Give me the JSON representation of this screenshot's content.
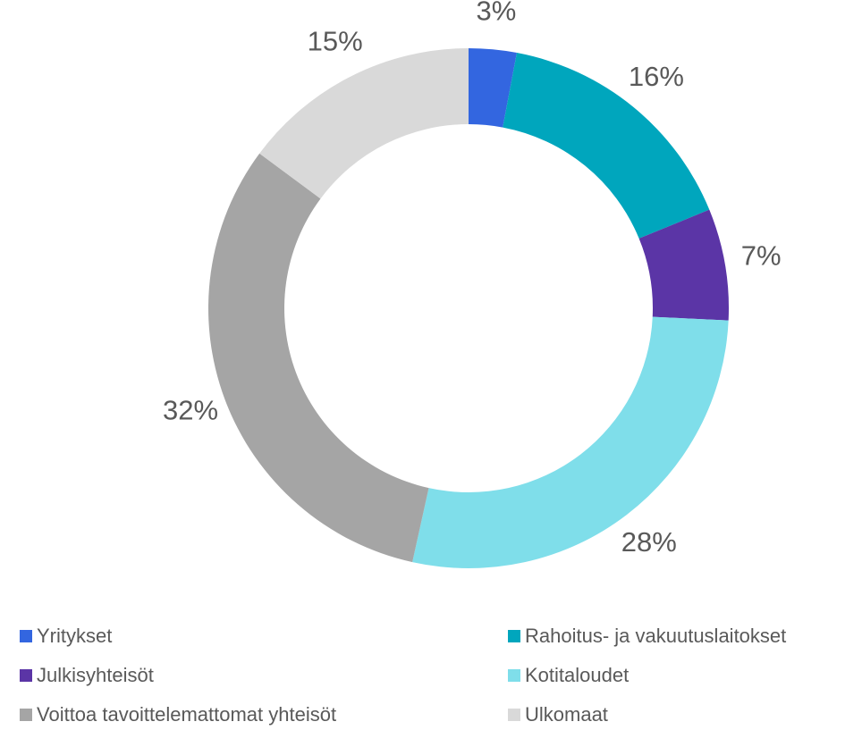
{
  "chart_data": {
    "type": "donut",
    "categories": [
      "Yritykset",
      "Rahoitus- ja vakuutuslaitokset",
      "Julkisyhteisöt",
      "Kotitaloudet",
      "Voittoa tavoittelemattomat yhteisöt",
      "Ulkomaat"
    ],
    "values": [
      3,
      16,
      7,
      28,
      32,
      15
    ],
    "value_labels": [
      "3%",
      "16%",
      "7%",
      "28%",
      "32%",
      "15%"
    ],
    "colors": [
      "#3366e0",
      "#00a6bd",
      "#5b35a6",
      "#7fdeea",
      "#a5a5a5",
      "#d9d9d9"
    ],
    "legend": "bottom"
  }
}
